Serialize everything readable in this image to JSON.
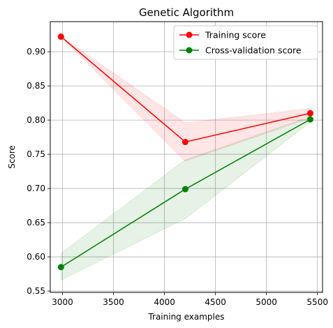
{
  "chart_data": {
    "type": "line",
    "title": "Genetic Algorithm",
    "xlabel": "Training examples",
    "ylabel": "Score",
    "xlim": [
      2880,
      5550
    ],
    "ylim": [
      0.548,
      0.944
    ],
    "xticks": [
      3000,
      3500,
      4000,
      4500,
      5000,
      5500
    ],
    "xtick_labels": [
      "3000",
      "3500",
      "4000",
      "4500",
      "5000",
      "5500"
    ],
    "yticks": [
      0.55,
      0.6,
      0.65,
      0.7,
      0.75,
      0.8,
      0.85,
      0.9
    ],
    "ytick_labels": [
      "0.55",
      "0.60",
      "0.65",
      "0.70",
      "0.75",
      "0.80",
      "0.85",
      "0.90"
    ],
    "grid": true,
    "legend_position": "top-right",
    "x": [
      2985,
      4204,
      5430
    ],
    "series": [
      {
        "name": "Training score",
        "color": "#ff0000",
        "band_color": "#ff0000",
        "values": [
          0.922,
          0.768,
          0.81
        ],
        "band_upper": [
          0.922,
          0.796,
          0.817
        ],
        "band_lower": [
          0.922,
          0.74,
          0.803
        ]
      },
      {
        "name": "Cross-validation score",
        "color": "#008000",
        "band_color": "#008000",
        "values": [
          0.585,
          0.699,
          0.801
        ],
        "band_upper": [
          0.605,
          0.742,
          0.805
        ],
        "band_lower": [
          0.566,
          0.656,
          0.797
        ]
      }
    ]
  }
}
